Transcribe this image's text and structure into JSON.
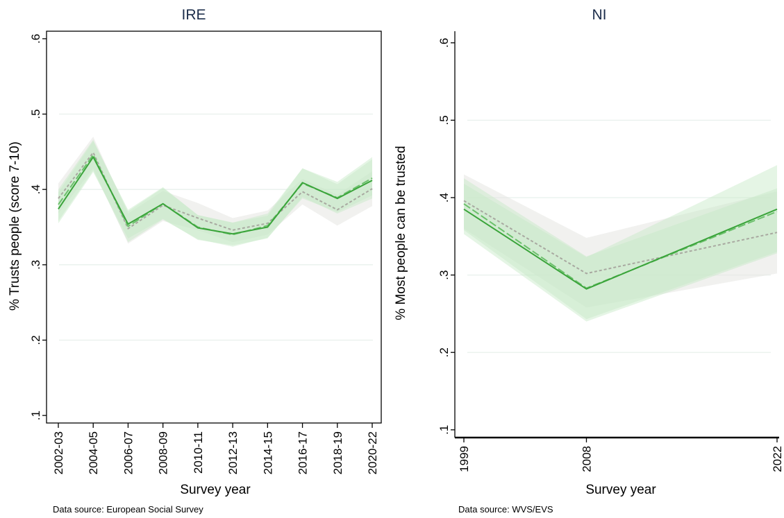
{
  "colors": {
    "solid": "#3aa43a",
    "dashed": "#6cc06c",
    "dotted": "#a8a8a0",
    "band_green": "#c6e8c6",
    "band_grey": "#e6e6e2",
    "grid": "#e8f0ec",
    "title": "#1b2c4a"
  },
  "chart_data": [
    {
      "type": "line",
      "title": "IRE",
      "xlabel": "Survey year",
      "ylabel": "% Trusts people (score 7-10)",
      "source_note": "Data source: European Social Survey",
      "ylim": [
        0.09,
        0.61
      ],
      "yticks": [
        ".1",
        ".2",
        ".3",
        ".4",
        ".5",
        ".6"
      ],
      "ytick_values": [
        0.1,
        0.2,
        0.3,
        0.4,
        0.5,
        0.6
      ],
      "grid": true,
      "categories": [
        "2002-03",
        "2004-05",
        "2006-07",
        "2008-09",
        "2010-11",
        "2012-13",
        "2014-15",
        "2016-17",
        "2018-19",
        "2020-22"
      ],
      "series": [
        {
          "style": "solid",
          "values": [
            0.374,
            0.443,
            0.354,
            0.381,
            0.349,
            0.341,
            0.35,
            0.409,
            0.388,
            0.412
          ],
          "ci_low": [
            0.355,
            0.423,
            0.335,
            0.361,
            0.333,
            0.326,
            0.335,
            0.39,
            0.368,
            0.388
          ],
          "ci_high": [
            0.396,
            0.464,
            0.373,
            0.403,
            0.366,
            0.356,
            0.365,
            0.428,
            0.407,
            0.44
          ]
        },
        {
          "style": "dashed",
          "values": [
            0.38,
            0.446,
            0.351,
            0.381,
            0.35,
            0.34,
            0.352,
            0.408,
            0.389,
            0.415
          ],
          "ci_low": [
            0.358,
            0.425,
            0.33,
            0.36,
            0.334,
            0.324,
            0.336,
            0.388,
            0.37,
            0.392
          ],
          "ci_high": [
            0.4,
            0.466,
            0.371,
            0.402,
            0.366,
            0.356,
            0.368,
            0.428,
            0.41,
            0.443
          ]
        },
        {
          "style": "dotted",
          "values": [
            0.388,
            0.449,
            0.348,
            0.379,
            0.362,
            0.346,
            0.355,
            0.397,
            0.373,
            0.401
          ],
          "ci_low": [
            0.368,
            0.428,
            0.328,
            0.358,
            0.346,
            0.33,
            0.34,
            0.38,
            0.352,
            0.378
          ],
          "ci_high": [
            0.408,
            0.47,
            0.368,
            0.398,
            0.382,
            0.362,
            0.372,
            0.414,
            0.393,
            0.424
          ]
        }
      ]
    },
    {
      "type": "line",
      "title": "NI",
      "xlabel": "Survey year",
      "ylabel": "% Most people can be trusted",
      "source_note": "Data source: WVS/EVS",
      "ylim": [
        0.09,
        0.615
      ],
      "yticks": [
        ".1",
        ".2",
        ".3",
        ".4",
        ".5",
        ".6"
      ],
      "ytick_values": [
        0.1,
        0.2,
        0.3,
        0.4,
        0.5,
        0.6
      ],
      "grid": true,
      "x": [
        1999,
        2008,
        2022
      ],
      "xticks": [
        "1999",
        "2008",
        "2022"
      ],
      "xlim": [
        1999,
        2022
      ],
      "series": [
        {
          "style": "solid",
          "values": [
            0.385,
            0.282,
            0.385
          ],
          "ci_low": [
            0.353,
            0.24,
            0.328
          ],
          "ci_high": [
            0.418,
            0.323,
            0.442
          ]
        },
        {
          "style": "dashed",
          "values": [
            0.392,
            0.283,
            0.382
          ],
          "ci_low": [
            0.358,
            0.243,
            0.33
          ],
          "ci_high": [
            0.425,
            0.324,
            0.412
          ]
        },
        {
          "style": "dotted",
          "values": [
            0.396,
            0.302,
            0.355
          ],
          "ci_low": [
            0.36,
            0.258,
            0.302
          ],
          "ci_high": [
            0.43,
            0.348,
            0.408
          ]
        }
      ]
    }
  ]
}
